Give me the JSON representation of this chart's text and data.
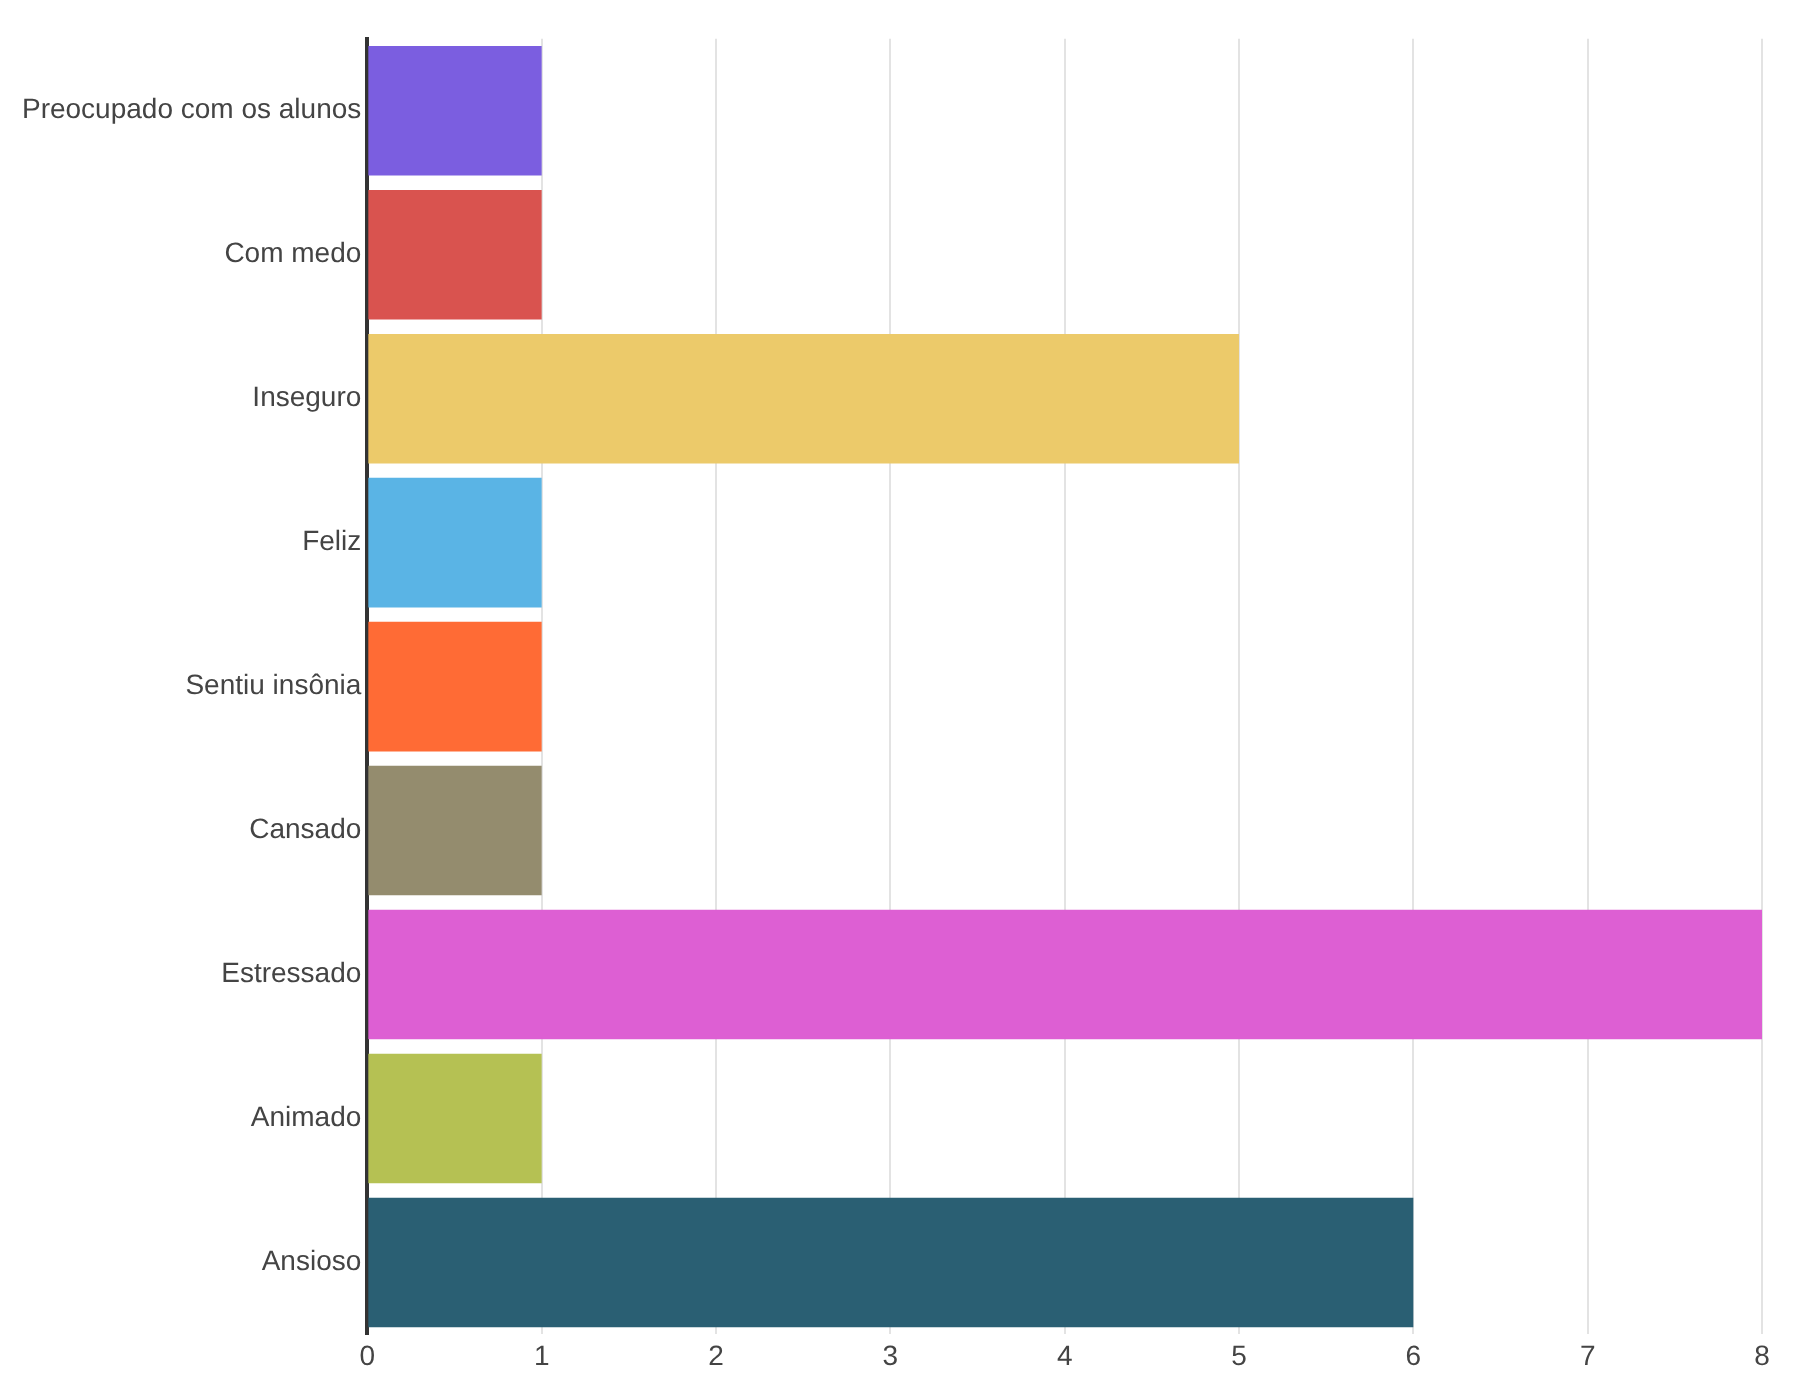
{
  "chart_data": {
    "type": "bar",
    "orientation": "horizontal",
    "categories": [
      "Preocupado com os alunos",
      "Com medo",
      "Inseguro",
      "Feliz",
      "Sentiu insônia",
      "Cansado",
      "Estressado",
      "Animado",
      "Ansioso"
    ],
    "values": [
      1,
      1,
      5,
      1,
      1,
      1,
      8,
      1,
      6
    ],
    "colors": [
      "#7b5ee0",
      "#d9534f",
      "#ecca6a",
      "#5ab4e5",
      "#ff6b35",
      "#948c6e",
      "#dd5fd3",
      "#b5c153",
      "#2a5f73"
    ],
    "xlim": [
      0,
      8
    ],
    "xticks": [
      0,
      1,
      2,
      3,
      4,
      5,
      6,
      7,
      8
    ],
    "grid": "x",
    "legend": false
  }
}
